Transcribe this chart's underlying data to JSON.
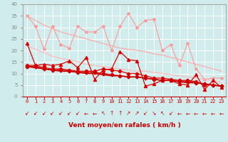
{
  "x": [
    0,
    1,
    2,
    3,
    4,
    5,
    6,
    7,
    8,
    9,
    10,
    11,
    12,
    13,
    14,
    15,
    16,
    17,
    18,
    19,
    20,
    21,
    22,
    23
  ],
  "series": [
    {
      "name": "light_pink_zigzag",
      "color": "#ff9999",
      "linewidth": 0.8,
      "marker": "*",
      "markersize": 3,
      "y": [
        35,
        30.5,
        20.5,
        30.5,
        22.5,
        21,
        30.5,
        28,
        28,
        30.5,
        20,
        30.5,
        36,
        30,
        33,
        33.5,
        20,
        22.5,
        13.5,
        23,
        12,
        7.5,
        8,
        8
      ]
    },
    {
      "name": "light_pink_trend1",
      "color": "#ffaaaa",
      "linewidth": 0.9,
      "marker": null,
      "markersize": 0,
      "y": [
        35,
        33,
        31,
        29.5,
        28,
        27,
        26,
        25,
        24,
        23,
        22,
        21,
        20.5,
        20,
        19.5,
        18.5,
        18,
        17,
        16,
        15,
        14,
        13,
        12,
        11
      ]
    },
    {
      "name": "light_pink_trend2",
      "color": "#ffbbbb",
      "linewidth": 0.9,
      "marker": null,
      "markersize": 0,
      "y": [
        22,
        20.5,
        19,
        17.5,
        16.5,
        16,
        15,
        14,
        13.5,
        13,
        12.5,
        12,
        11.5,
        11,
        11,
        10.5,
        10,
        9.5,
        9,
        8.5,
        8,
        7.5,
        7,
        6
      ]
    },
    {
      "name": "dark_red_zigzag",
      "color": "#dd0000",
      "linewidth": 0.9,
      "marker": "^",
      "markersize": 3,
      "y": [
        23,
        13.5,
        14,
        13.5,
        14,
        15.5,
        12.5,
        17,
        7.5,
        11.5,
        12,
        19.5,
        16,
        15.5,
        4.5,
        5.5,
        7,
        7,
        5.5,
        5,
        9.5,
        3,
        7,
        4
      ]
    },
    {
      "name": "dark_red_cross",
      "color": "#dd0000",
      "linewidth": 0.9,
      "marker": "P",
      "markersize": 3,
      "y": [
        13.5,
        13.5,
        12.5,
        12,
        12,
        11.5,
        11,
        11,
        11,
        12,
        11.5,
        11,
        10,
        10,
        9,
        8,
        8,
        7.5,
        7,
        7,
        6.5,
        5,
        5,
        4.5
      ]
    },
    {
      "name": "dark_red_diamond",
      "color": "#cc0000",
      "linewidth": 0.9,
      "marker": "D",
      "markersize": 2.5,
      "y": [
        13,
        13,
        12,
        11.5,
        11.5,
        11,
        10.5,
        10.5,
        10.5,
        10,
        9.5,
        9,
        8.5,
        8.5,
        8,
        7.5,
        7,
        7,
        6.5,
        6.5,
        6,
        5.5,
        5,
        4.5
      ]
    },
    {
      "name": "dark_red_trend",
      "color": "#cc0000",
      "linewidth": 1.2,
      "marker": null,
      "markersize": 0,
      "y": [
        13,
        12.5,
        12,
        11.5,
        11,
        11,
        10.5,
        10,
        10,
        9.5,
        9,
        9,
        8.5,
        8.5,
        8,
        7.5,
        7,
        7,
        6.5,
        6,
        6,
        5.5,
        5,
        4.5
      ]
    }
  ],
  "xlabel": "Vent moyen/en rafales ( km/h )",
  "xlabel_color": "#cc0000",
  "xlabel_fontsize": 6.5,
  "ylim": [
    0,
    40
  ],
  "xlim": [
    -0.5,
    23.5
  ],
  "yticks": [
    0,
    5,
    10,
    15,
    20,
    25,
    30,
    35,
    40
  ],
  "xticks": [
    0,
    1,
    2,
    3,
    4,
    5,
    6,
    7,
    8,
    9,
    10,
    11,
    12,
    13,
    14,
    15,
    16,
    17,
    18,
    19,
    20,
    21,
    22,
    23
  ],
  "bg_color": "#d0ecec",
  "grid_color": "#ffffff",
  "tick_fontsize": 5.0,
  "arrow_color": "#cc0000",
  "arrows": [
    "↙",
    "↙",
    "↙",
    "↙",
    "↙",
    "↙",
    "↙",
    "←",
    "←",
    "↖",
    "↑",
    "↑",
    "↗",
    "↗",
    "↙",
    "↘",
    "↖",
    "↙",
    "←",
    "←",
    "←",
    "←",
    "←",
    "←"
  ]
}
